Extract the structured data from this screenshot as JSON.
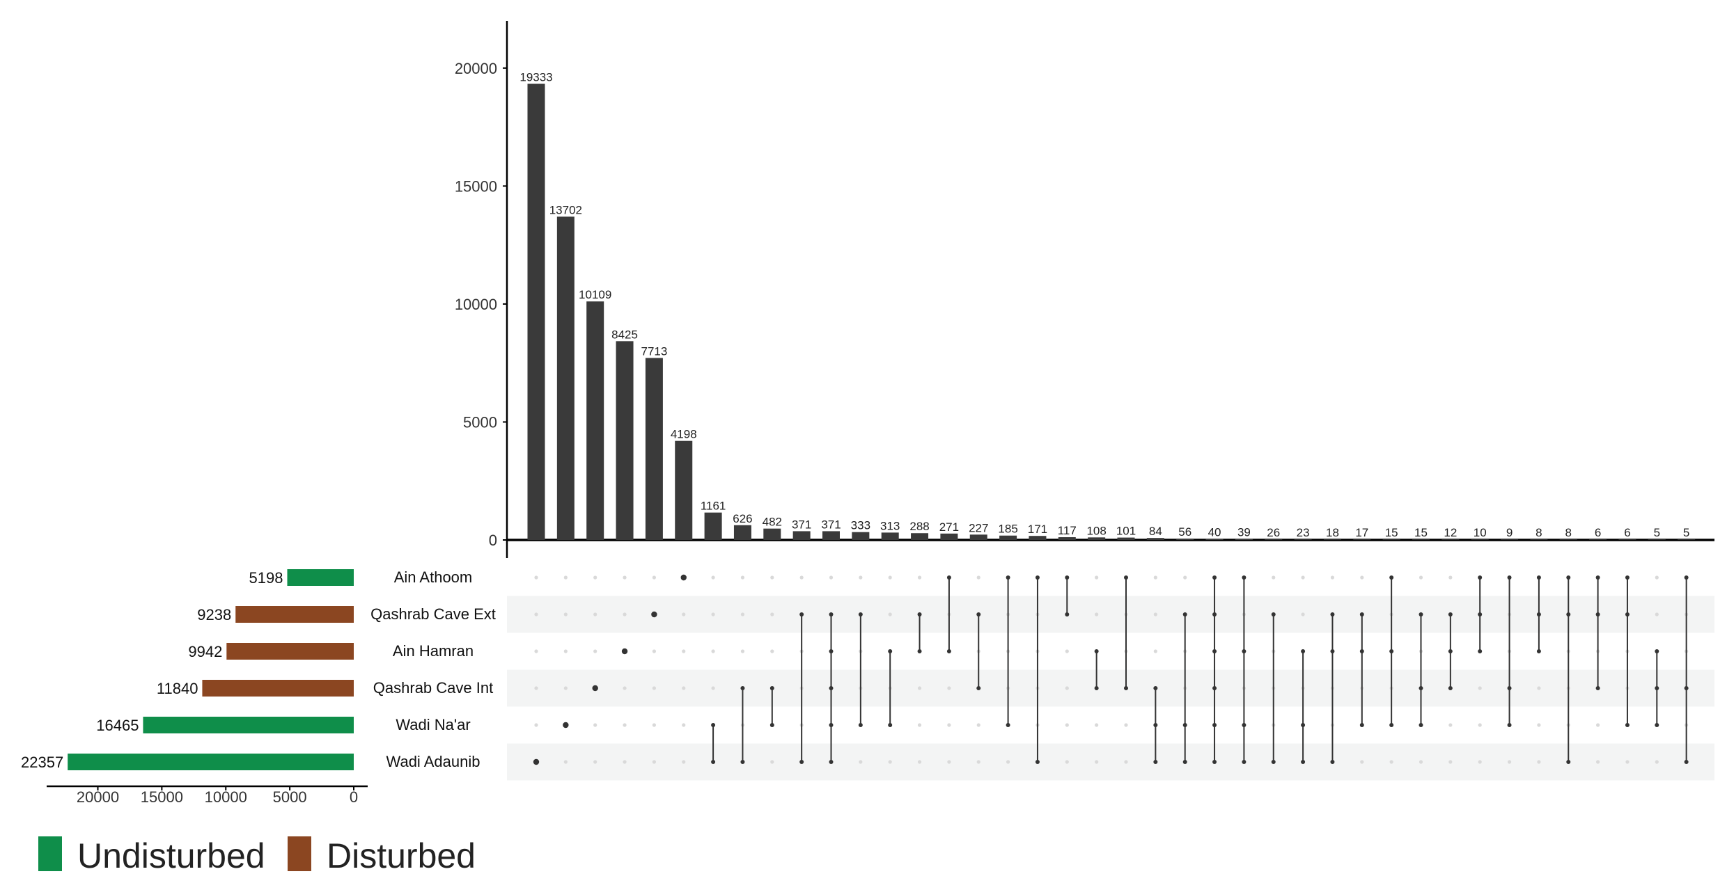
{
  "chart_data": {
    "type": "bar",
    "subtype": "upset",
    "intersection_size_axis": {
      "ylim": [
        0,
        22000
      ],
      "ticks": [
        0,
        5000,
        10000,
        15000,
        20000
      ],
      "grid": false
    },
    "set_size_axis": {
      "xlim": [
        0,
        24000
      ],
      "reversed": true,
      "ticks": [
        0,
        5000,
        10000,
        15000,
        20000
      ]
    },
    "sets": [
      {
        "name": "Ain Athoom",
        "size": 5198,
        "group": "Undisturbed"
      },
      {
        "name": "Qashrab Cave Ext",
        "size": 9238,
        "group": "Disturbed"
      },
      {
        "name": "Ain Hamran",
        "size": 9942,
        "group": "Disturbed"
      },
      {
        "name": "Qashrab Cave Int",
        "size": 11840,
        "group": "Disturbed"
      },
      {
        "name": "Wadi Na'ar",
        "size": 16465,
        "group": "Undisturbed"
      },
      {
        "name": "Wadi Adaunib",
        "size": 22357,
        "group": "Undisturbed"
      }
    ],
    "intersections": [
      {
        "value": 19333,
        "sets": [
          5
        ]
      },
      {
        "value": 13702,
        "sets": [
          4
        ]
      },
      {
        "value": 10109,
        "sets": [
          3
        ]
      },
      {
        "value": 8425,
        "sets": [
          2
        ]
      },
      {
        "value": 7713,
        "sets": [
          1
        ]
      },
      {
        "value": 4198,
        "sets": [
          0
        ]
      },
      {
        "value": 1161,
        "sets": [
          4,
          5
        ]
      },
      {
        "value": 626,
        "sets": [
          3,
          5
        ]
      },
      {
        "value": 482,
        "sets": [
          3,
          4
        ]
      },
      {
        "value": 371,
        "sets": [
          1,
          5
        ]
      },
      {
        "value": 371,
        "sets": [
          1,
          2,
          3,
          4,
          5
        ]
      },
      {
        "value": 333,
        "sets": [
          1,
          4
        ]
      },
      {
        "value": 313,
        "sets": [
          2,
          4
        ]
      },
      {
        "value": 288,
        "sets": [
          1,
          2
        ]
      },
      {
        "value": 271,
        "sets": [
          0,
          2
        ]
      },
      {
        "value": 227,
        "sets": [
          1,
          3
        ]
      },
      {
        "value": 185,
        "sets": [
          0,
          4
        ]
      },
      {
        "value": 171,
        "sets": [
          0,
          5
        ]
      },
      {
        "value": 117,
        "sets": [
          0,
          1
        ]
      },
      {
        "value": 108,
        "sets": [
          2,
          3
        ]
      },
      {
        "value": 101,
        "sets": [
          0,
          3
        ]
      },
      {
        "value": 84,
        "sets": [
          3,
          4,
          5
        ]
      },
      {
        "value": 56,
        "sets": [
          1,
          4,
          5
        ]
      },
      {
        "value": 40,
        "sets": [
          0,
          1,
          2,
          3,
          4,
          5
        ]
      },
      {
        "value": 39,
        "sets": [
          0,
          2,
          4,
          5
        ]
      },
      {
        "value": 26,
        "sets": [
          1,
          5
        ]
      },
      {
        "value": 23,
        "sets": [
          2,
          4,
          5
        ]
      },
      {
        "value": 18,
        "sets": [
          1,
          2,
          5
        ]
      },
      {
        "value": 17,
        "sets": [
          1,
          2,
          4
        ]
      },
      {
        "value": 15,
        "sets": [
          0,
          2,
          4
        ]
      },
      {
        "value": 15,
        "sets": [
          1,
          3,
          4
        ]
      },
      {
        "value": 12,
        "sets": [
          1,
          2,
          3
        ]
      },
      {
        "value": 10,
        "sets": [
          0,
          1,
          2
        ]
      },
      {
        "value": 9,
        "sets": [
          0,
          3,
          4
        ]
      },
      {
        "value": 8,
        "sets": [
          0,
          1,
          2
        ]
      },
      {
        "value": 8,
        "sets": [
          0,
          1,
          5
        ]
      },
      {
        "value": 6,
        "sets": [
          0,
          1,
          3
        ]
      },
      {
        "value": 6,
        "sets": [
          0,
          1,
          4
        ]
      },
      {
        "value": 5,
        "sets": [
          2,
          3,
          4
        ]
      },
      {
        "value": 5,
        "sets": [
          0,
          3,
          5
        ]
      }
    ],
    "legend": {
      "placement": "bottom-left",
      "entries": [
        {
          "label": "Undisturbed",
          "color": "#0f8e4a"
        },
        {
          "label": "Disturbed",
          "color": "#8b4621"
        }
      ]
    },
    "colors": {
      "bar": "#3a3a3a",
      "dot": "#333333",
      "inactive_dot": "#d9d9d9",
      "stripe": "#f3f4f4"
    }
  }
}
